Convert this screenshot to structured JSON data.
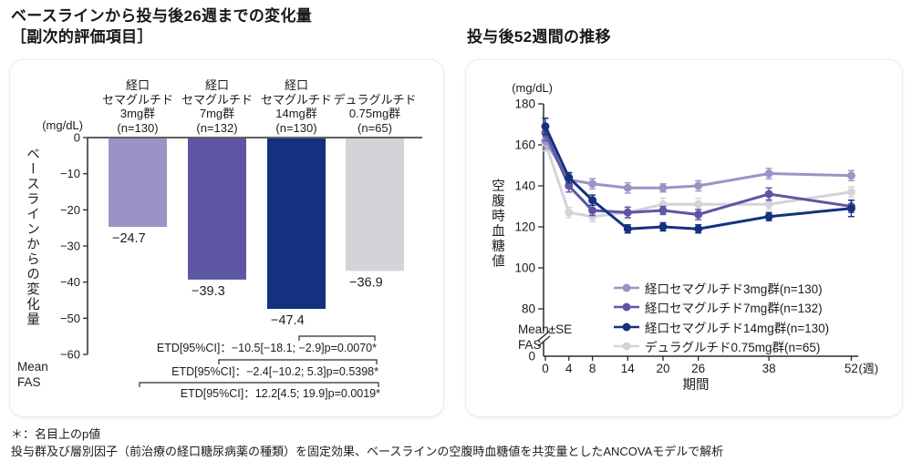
{
  "page": {
    "footnote_line1": "＊：名目上のp値",
    "footnote_line2": "投与群及び層別因子（前治療の経口糖尿病薬の種類）を固定効果、ベースラインの空腹時血糖値を共変量としたANCOVAモデルで解析"
  },
  "chart_data": [
    {
      "type": "bar",
      "title": "ベースラインから投与後26週までの変化量\n［副次的評価項目］",
      "unit": "(mg/dL)",
      "ylabel": "ベースラインからの変化量",
      "stat_note": "Mean\nFAS",
      "ylim": [
        -60,
        0
      ],
      "yticks": [
        0,
        -10,
        -20,
        -30,
        -40,
        -50,
        -60
      ],
      "grid": false,
      "categories": [
        "経口\nセマグルチド\n3mg群\n(n=130)",
        "経口\nセマグルチド\n7mg群\n(n=132)",
        "経口\nセマグルチド\n14mg群\n(n=130)",
        "デュラグルチド\n0.75mg群\n(n=65)"
      ],
      "values": [
        -24.7,
        -39.3,
        -47.4,
        -36.9
      ],
      "value_labels": [
        "−24.7",
        "−39.3",
        "−47.4",
        "−36.9"
      ],
      "colors": [
        "#9a94c6",
        "#5d56a5",
        "#13317f",
        "#d3d3d9"
      ],
      "comparisons": [
        {
          "from": 2,
          "to": 3,
          "label": "ETD[95%CI]：−10.5[−18.1; −2.9]p=0.0070*"
        },
        {
          "from": 1,
          "to": 3,
          "label": "ETD[95%CI]：−2.4[−10.2; 5.3]p=0.5398*"
        },
        {
          "from": 0,
          "to": 3,
          "label": "ETD[95%CI]：12.2[4.5; 19.9]p=0.0019*"
        }
      ]
    },
    {
      "type": "line",
      "title": "投与後52週間の推移",
      "unit": "(mg/dL)",
      "ylabel": "空腹時血糖値",
      "xlabel": "期間",
      "x_suffix": "(週)",
      "stat_note": "Mean±SE\nFAS",
      "x": [
        0,
        4,
        8,
        14,
        20,
        26,
        38,
        52
      ],
      "yticks": [
        180,
        160,
        140,
        120,
        100,
        80
      ],
      "y_axis_zero_label": "0",
      "ylim": [
        80,
        180
      ],
      "axis_break": true,
      "grid": false,
      "legend_position": "lower right inside",
      "series": [
        {
          "name": "経口セマグルチド3mg群(n=130)",
          "color": "#9a94c6",
          "values": [
            162,
            143,
            141,
            139,
            139,
            140,
            146,
            145
          ],
          "se": [
            4,
            3,
            2.5,
            2.5,
            2,
            2.5,
            2.5,
            2.5
          ]
        },
        {
          "name": "経口セマグルチド7mg群(n=132)",
          "color": "#5d56a5",
          "values": [
            166,
            140,
            128,
            127,
            128,
            126,
            136,
            130
          ],
          "se": [
            4,
            3,
            2.5,
            2.5,
            2,
            2.5,
            3,
            3
          ]
        },
        {
          "name": "経口セマグルチド14mg群(n=130)",
          "color": "#13317f",
          "values": [
            169,
            144,
            133,
            119,
            120,
            119,
            125,
            129
          ],
          "se": [
            4,
            2.5,
            2.5,
            2,
            2,
            2,
            2,
            4
          ]
        },
        {
          "name": "デュラグルチド0.75mg群(n=65)",
          "color": "#d3d3d9",
          "values": [
            161,
            127,
            125,
            127,
            131,
            131,
            131,
            137
          ],
          "se": [
            4,
            2.5,
            2.5,
            3,
            3,
            3,
            2.5,
            2.5
          ]
        }
      ]
    }
  ]
}
